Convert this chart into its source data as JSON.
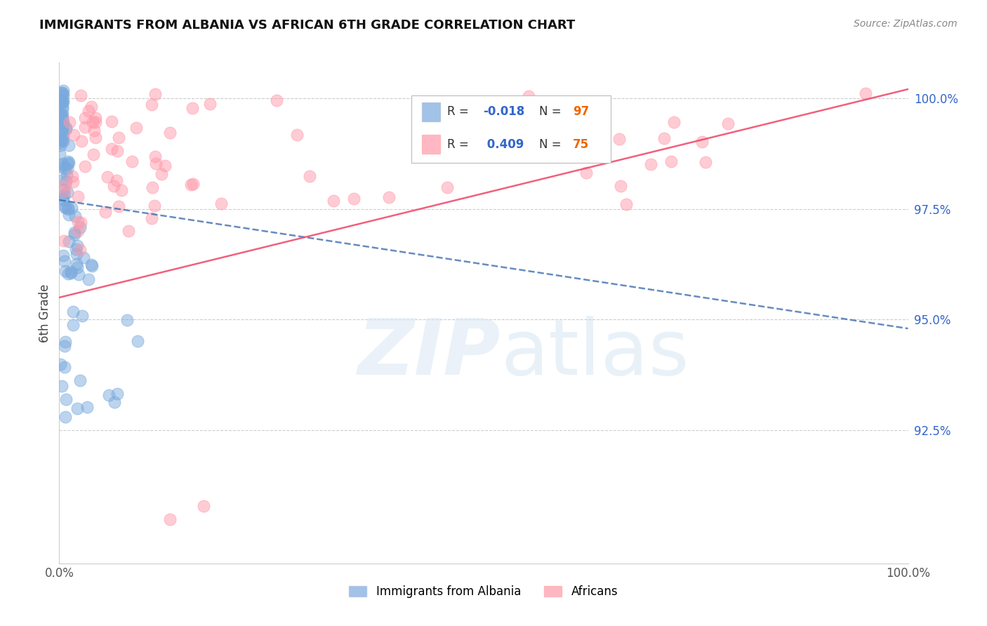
{
  "title": "IMMIGRANTS FROM ALBANIA VS AFRICAN 6TH GRADE CORRELATION CHART",
  "source": "Source: ZipAtlas.com",
  "ylabel": "6th Grade",
  "ylabel_right_ticks": [
    "100.0%",
    "97.5%",
    "95.0%",
    "92.5%"
  ],
  "ylabel_right_positions": [
    1.0,
    0.975,
    0.95,
    0.925
  ],
  "legend_albania": "Immigrants from Albania",
  "legend_africans": "Africans",
  "R_albania": -0.018,
  "N_albania": 97,
  "R_africans": 0.409,
  "N_africans": 75,
  "albania_color": "#7aaadd",
  "africans_color": "#ff99aa",
  "albania_line_color": "#3366aa",
  "africans_line_color": "#ee4466",
  "background_color": "#ffffff",
  "xlim": [
    0.0,
    1.0
  ],
  "ylim": [
    0.895,
    1.008
  ]
}
